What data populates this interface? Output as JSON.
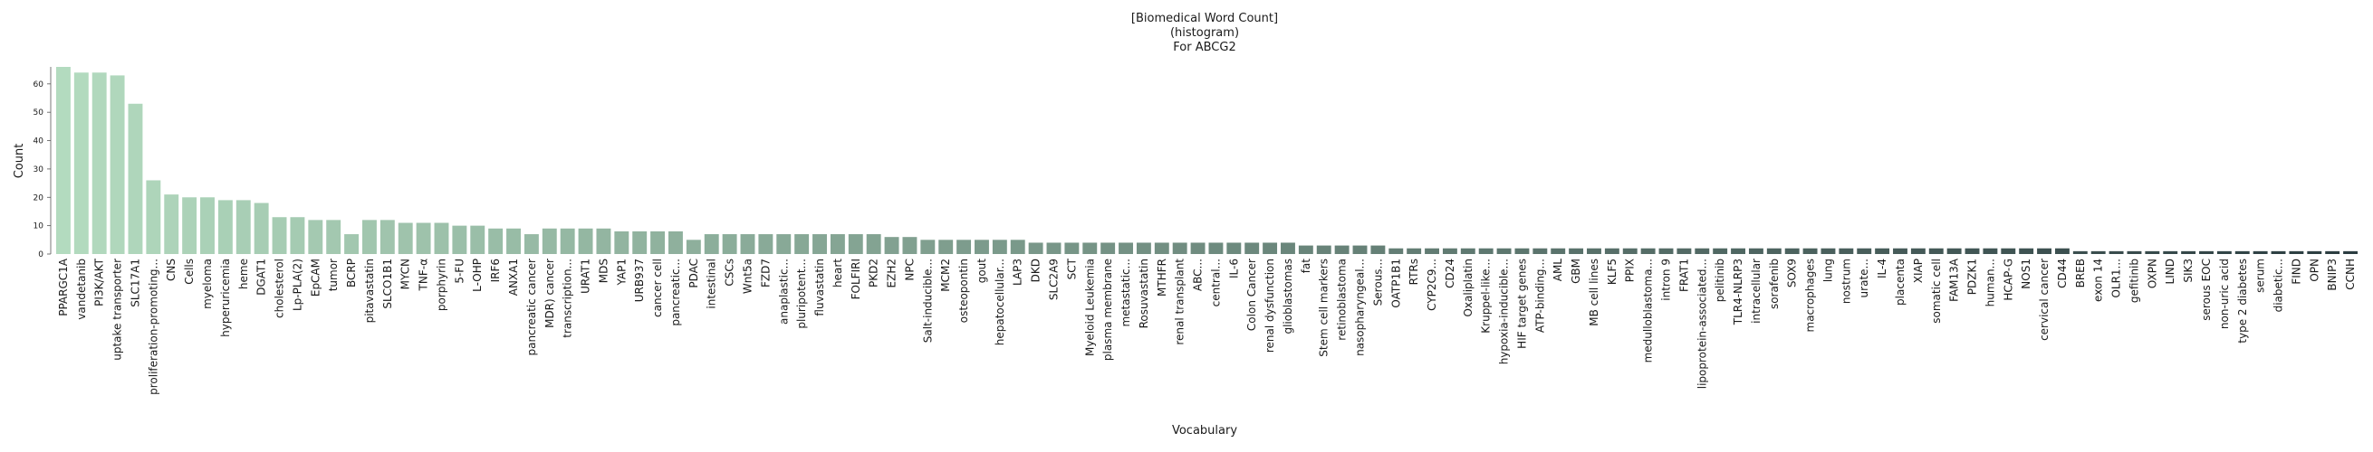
{
  "chart_data": {
    "type": "bar",
    "title": [
      "[Biomedical Word Count]",
      "(histogram)",
      "For ABCG2"
    ],
    "xlabel": "Vocabulary",
    "ylabel": "Count",
    "yticks": [
      0,
      10,
      20,
      30,
      40,
      50,
      60
    ],
    "ylim": [
      0,
      66
    ],
    "grid": false,
    "colors": {
      "start": "#b3dbbf",
      "end": "#2b3c40"
    },
    "categories": [
      "PPARGC1A",
      "vandetanib",
      "PI3K/AKT",
      "uptake transporter",
      "SLC17A1",
      "proliferation-promoting...",
      "CNS",
      "Cells",
      "myeloma",
      "hyperuricemia",
      "heme",
      "DGAT1",
      "cholesterol",
      "Lp-PLA(2)",
      "EpCAM",
      "tumor",
      "BCRP",
      "pitavastatin",
      "SLCO1B1",
      "MYCN",
      "TNF-α",
      "porphyrin",
      "5-FU",
      "L-OHP",
      "IRF6",
      "ANXA1",
      "pancreatic cancer",
      "MDR) cancer",
      "transcription...",
      "URAT1",
      "MDS",
      "YAP1",
      "URB937",
      "cancer cell",
      "pancreatic...",
      "PDAC",
      "intestinal",
      "CSCs",
      "Wnt5a",
      "FZD7",
      "anaplastic...",
      "pluripotent...",
      "fluvastatin",
      "heart",
      "FOLFIRI",
      "PKD2",
      "EZH2",
      "NPC",
      "Salt-inducible...",
      "MCM2",
      "osteopontin",
      "gout",
      "hepatocellular...",
      "LAP3",
      "DKD",
      "SLC2A9",
      "SCT",
      "Myeloid Leukemia",
      "plasma membrane",
      "metastatic...",
      "Rosuvastatin",
      "MTHFR",
      "renal transplant",
      "ABC...",
      "central...",
      "IL-6",
      "Colon Cancer",
      "renal dysfunction",
      "glioblastomas",
      "fat",
      "Stem cell markers",
      "retinoblastoma",
      "nasopharyngeal...",
      "Serous...",
      "OATP1B1",
      "RTRs",
      "CYP2C9...",
      "CD24",
      "Oxaliplatin",
      "Kruppel-like...",
      "hypoxia-inducible...",
      "HIF target genes",
      "ATP-binding...",
      "AML",
      "GBM",
      "MB cell lines",
      "KLF5",
      "PPIX",
      "medulloblastoma...",
      "intron 9",
      "FRAT1",
      "lipoprotein-associated...",
      "pelitinib",
      "TLR4-NLRP3",
      "intracellular",
      "sorafenib",
      "SOX9",
      "macrophages",
      "lung",
      "nostrum",
      "urate...",
      "IL-4",
      "placenta",
      "XIAP",
      "somatic cell",
      "FAM13A",
      "PDZK1",
      "human...",
      "HCAP-G",
      "NOS1",
      "cervical cancer",
      "CD44",
      "BREB",
      "exon 14",
      "OLR1...",
      "gefitinib",
      "OXPN",
      "LIND",
      "SIK3",
      "serous EOC",
      "non-uric acid",
      "type 2 diabetes",
      "serum",
      "diabetic...",
      "FIND",
      "OPN",
      "BNIP3",
      "CCNH"
    ],
    "values": [
      66,
      64,
      64,
      63,
      53,
      26,
      21,
      20,
      20,
      19,
      19,
      18,
      13,
      13,
      12,
      12,
      7,
      12,
      12,
      11,
      11,
      11,
      10,
      10,
      9,
      9,
      7,
      9,
      9,
      9,
      9,
      8,
      8,
      8,
      8,
      5,
      7,
      7,
      7,
      7,
      7,
      7,
      7,
      7,
      7,
      7,
      6,
      6,
      5,
      5,
      5,
      5,
      5,
      5,
      4,
      4,
      4,
      4,
      4,
      4,
      4,
      4,
      4,
      4,
      4,
      4,
      4,
      4,
      4,
      3,
      3,
      3,
      3,
      3,
      2,
      2,
      2,
      2,
      2,
      2,
      2,
      2,
      2,
      2,
      2,
      2,
      2,
      2,
      2,
      2,
      2,
      2,
      2,
      2,
      2,
      2,
      2,
      2,
      2,
      2,
      2,
      2,
      2,
      2,
      2,
      2,
      2,
      2,
      2,
      2,
      2,
      2,
      1,
      1,
      1,
      1,
      1,
      1,
      1,
      1,
      1,
      1,
      1,
      1,
      1,
      1,
      1,
      1
    ]
  }
}
